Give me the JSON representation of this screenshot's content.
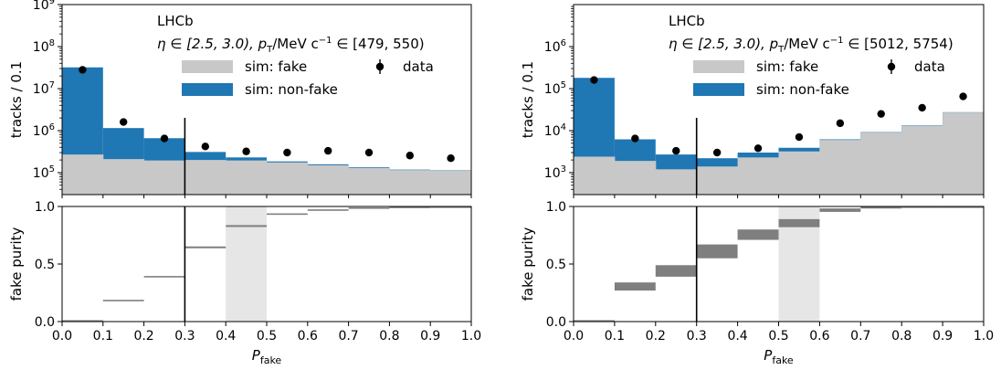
{
  "chart_data": [
    {
      "type": "histogram",
      "panel": "left",
      "experiment_label": "LHCb",
      "selection_label": {
        "eta": "η ∈ [2.5, 3.0), ",
        "pt_prefix": "p",
        "pt_sub": "T",
        "pt_unit": "/MeV c",
        "pt_exp": "−1",
        "pt_range": " ∈ [479, 550)"
      },
      "legend": {
        "fake": "sim: fake",
        "nonfake": "sim: non-fake",
        "data": "data"
      },
      "top": {
        "ylabel": "tracks / 0.1",
        "yscale": "log",
        "ylim": [
          30000,
          1000000000
        ],
        "ytick_labels": [
          {
            "value": 100000,
            "exp": "5"
          },
          {
            "value": 1000000,
            "exp": "6"
          },
          {
            "value": 10000000,
            "exp": "7"
          },
          {
            "value": 100000000,
            "exp": "8"
          },
          {
            "value": 1000000000,
            "exp": "9"
          }
        ],
        "bin_edges": [
          0.0,
          0.1,
          0.2,
          0.3,
          0.4,
          0.5,
          0.6,
          0.7,
          0.8,
          0.9,
          1.0
        ],
        "sim_fake": [
          270000,
          210000,
          195000,
          200000,
          195000,
          175000,
          150000,
          130000,
          115000,
          112000
        ],
        "sim_total": [
          32000000,
          1150000,
          660000,
          310000,
          230000,
          185000,
          158000,
          135000,
          118000,
          114000
        ],
        "data": [
          28000000,
          1600000,
          650000,
          420000,
          320000,
          300000,
          330000,
          300000,
          255000,
          220000
        ]
      },
      "bottom": {
        "ylabel": "fake purity",
        "ylim": [
          0,
          1
        ],
        "ytick_labels": [
          "0.0",
          "0.5",
          "1.0"
        ],
        "bin_edges": [
          0.0,
          0.1,
          0.2,
          0.3,
          0.4,
          0.5,
          0.6,
          0.7,
          0.8,
          0.9,
          1.0
        ],
        "purity": [
          0.008,
          0.185,
          0.39,
          0.645,
          0.83,
          0.935,
          0.972,
          0.99,
          0.997,
          0.999
        ],
        "purity_err": [
          0.004,
          0.004,
          0.006,
          0.008,
          0.008,
          0.005,
          0.003,
          0.002,
          0.001,
          0.001
        ],
        "highlight_band": [
          0.4,
          0.5
        ]
      },
      "cut_line_x": 0.3,
      "xlabel": {
        "main": "P",
        "sub": "fake"
      },
      "xlim": [
        0,
        1
      ],
      "xtick_labels": [
        "0.0",
        "0.1",
        "0.2",
        "0.3",
        "0.4",
        "0.5",
        "0.6",
        "0.7",
        "0.8",
        "0.9",
        "1.0"
      ],
      "colors": {
        "fake": "#c8c8c8",
        "nonfake": "#1f77b4",
        "purity": "#7f7f7f",
        "band": "#e6e6e6"
      }
    },
    {
      "type": "histogram",
      "panel": "right",
      "experiment_label": "LHCb",
      "selection_label": {
        "eta": "η ∈ [2.5, 3.0), ",
        "pt_prefix": "p",
        "pt_sub": "T",
        "pt_unit": "/MeV c",
        "pt_exp": "−1",
        "pt_range": " ∈ [5012, 5754)"
      },
      "legend": {
        "fake": "sim: fake",
        "nonfake": "sim: non-fake",
        "data": "data"
      },
      "top": {
        "ylabel": "tracks / 0.1",
        "yscale": "log",
        "ylim": [
          300,
          10000000
        ],
        "ytick_labels": [
          {
            "value": 1000,
            "exp": "3"
          },
          {
            "value": 10000,
            "exp": "4"
          },
          {
            "value": 100000,
            "exp": "5"
          },
          {
            "value": 1000000,
            "exp": "6"
          }
        ],
        "bin_edges": [
          0.0,
          0.1,
          0.2,
          0.3,
          0.4,
          0.5,
          0.6,
          0.7,
          0.8,
          0.9,
          1.0
        ],
        "sim_fake": [
          2400,
          1900,
          1200,
          1400,
          2300,
          3200,
          6000,
          9000,
          13000,
          27000
        ],
        "sim_total": [
          180000,
          6200,
          2700,
          2200,
          3000,
          3900,
          6200,
          9200,
          13300,
          27400
        ],
        "data": [
          160000,
          6500,
          3300,
          3000,
          3800,
          7000,
          15000,
          25000,
          35000,
          65000
        ]
      },
      "bottom": {
        "ylabel": "fake purity",
        "ylim": [
          0,
          1
        ],
        "ytick_labels": [
          "0.0",
          "0.5",
          "1.0"
        ],
        "bin_edges": [
          0.0,
          0.1,
          0.2,
          0.3,
          0.4,
          0.5,
          0.6,
          0.7,
          0.8,
          0.9,
          1.0
        ],
        "purity": [
          0.008,
          0.305,
          0.44,
          0.61,
          0.755,
          0.855,
          0.968,
          0.99,
          0.996,
          0.999
        ],
        "purity_err": [
          0.004,
          0.035,
          0.05,
          0.06,
          0.045,
          0.035,
          0.015,
          0.008,
          0.004,
          0.002
        ],
        "highlight_band": [
          0.5,
          0.6
        ]
      },
      "cut_line_x": 0.3,
      "xlabel": {
        "main": "P",
        "sub": "fake"
      },
      "xlim": [
        0,
        1
      ],
      "xtick_labels": [
        "0.0",
        "0.1",
        "0.2",
        "0.3",
        "0.4",
        "0.5",
        "0.6",
        "0.7",
        "0.8",
        "0.9",
        "1.0"
      ],
      "colors": {
        "fake": "#c8c8c8",
        "nonfake": "#1f77b4",
        "purity": "#7f7f7f",
        "band": "#e6e6e6"
      }
    }
  ]
}
